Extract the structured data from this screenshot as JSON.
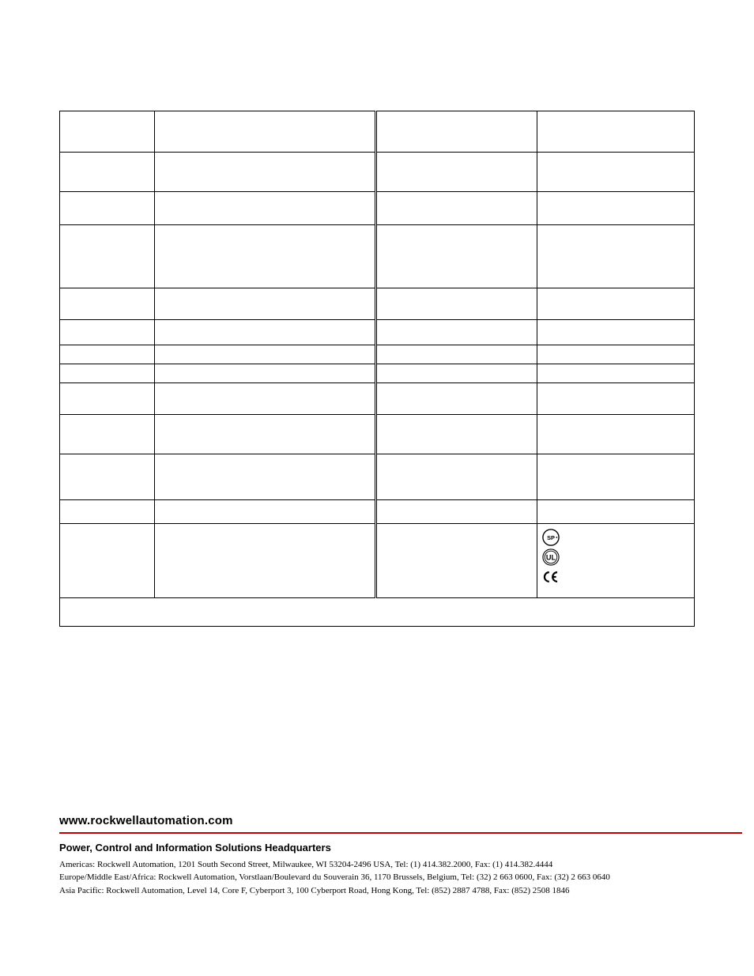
{
  "table": {
    "rows": [
      {
        "h1": 52,
        "attr1": "",
        "val1": "",
        "attr2": "",
        "val2": ""
      },
      {
        "h1": 50,
        "attr1": "",
        "val1": "",
        "attr2": "",
        "val2": ""
      },
      {
        "h1": 42,
        "attr1": "",
        "val1": "",
        "attr2": "",
        "val2": ""
      },
      {
        "h1": 80,
        "attr1": "",
        "val1": "",
        "attr2": "",
        "val2": ""
      },
      {
        "h1": 40,
        "attr1": "",
        "val1": "",
        "attr2": "",
        "val2": ""
      },
      {
        "h1": 32,
        "attr1": "",
        "val1": "",
        "attr2": "",
        "val2": ""
      },
      {
        "h1": 24,
        "attr1": "",
        "val1": "",
        "attr2": "",
        "val2": ""
      },
      {
        "h1": 24,
        "attr1": "",
        "val1": "",
        "attr2": "",
        "val2": ""
      },
      {
        "h1": 40,
        "attr1": "",
        "val1": "",
        "attr2": "",
        "val2": ""
      },
      {
        "h1": 50,
        "attr1": "",
        "val1": "",
        "attr2": "",
        "val2": ""
      },
      {
        "h1": 58,
        "attr1": "",
        "val1": "",
        "attr2": "",
        "val2": ""
      },
      {
        "h1": 30,
        "attr1": "",
        "val1": "",
        "attr2": "",
        "val2": ""
      }
    ],
    "cert_row": {
      "h1": 94,
      "attr1": "",
      "val1": "",
      "attr2": ""
    },
    "footnote_row": {
      "h1": 36,
      "text": ""
    }
  },
  "footer": {
    "url": "www.rockwellautomation.com",
    "heading": "Power, Control and Information Solutions Headquarters",
    "addresses": [
      "Americas: Rockwell Automation, 1201 South Second Street, Milwaukee, WI 53204-2496 USA, Tel: (1) 414.382.2000, Fax: (1) 414.382.4444",
      "Europe/Middle East/Africa: Rockwell Automation, Vorstlaan/Boulevard du Souverain 36, 1170 Brussels, Belgium, Tel: (32) 2 663 0600, Fax: (32) 2 663 0640",
      "Asia Pacific: Rockwell Automation, Level 14, Core F, Cyberport 3, 100 Cyberport Road, Hong Kong, Tel: (852) 2887 4788, Fax: (852) 2508 1846"
    ]
  },
  "colors": {
    "accent_red": "#c00000",
    "text": "#000000",
    "background": "#ffffff"
  }
}
